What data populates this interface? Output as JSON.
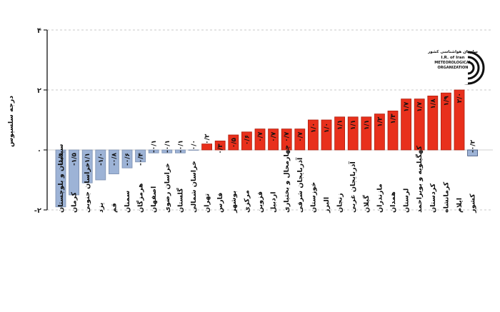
{
  "chart_data": {
    "type": "bar",
    "ylabel": "درجه سلسیوس",
    "ylim": [
      -2,
      4
    ],
    "yticks": [
      "-۲",
      "۰",
      "۲",
      "۴"
    ],
    "ytick_values": [
      -2,
      0,
      2,
      4
    ],
    "grid": true,
    "categories": [
      "سیستان و بلوچستان",
      "کرمان",
      "خراسان جنوبی",
      "یزد",
      "قم",
      "سمنان",
      "هرمزگان",
      "اصفهان",
      "خراسان رضوی",
      "گلستان",
      "خراسان شمالی",
      "تهران",
      "فارس",
      "بوشهر",
      "مرکزی",
      "قزوین",
      "اردبیل",
      "چهارمحال و بختیاری",
      "آذربایجان شرقی",
      "خوزستان",
      "البرز",
      "زنجان",
      "آذربایجان غربی",
      "گیلان",
      "مازندران",
      "همدان",
      "لرستان",
      "کهگیلویه و بویراحمد",
      "کردستان",
      "کرمانشاه",
      "ایلام",
      "کشور"
    ],
    "values": [
      -1.9,
      -1.5,
      -1.1,
      -1.0,
      -0.8,
      -0.6,
      -0.4,
      -0.1,
      -0.1,
      -0.1,
      0.0,
      0.2,
      0.3,
      0.5,
      0.6,
      0.7,
      0.7,
      0.7,
      0.7,
      1.0,
      1.0,
      1.1,
      1.1,
      1.1,
      1.2,
      1.3,
      1.7,
      1.7,
      1.8,
      1.9,
      2.0,
      -0.2
    ],
    "labels": [
      "-۱/۹",
      "-۱/۵",
      "-۱/۱",
      "-۱/۰",
      "-۰/۸",
      "-۰/۶",
      "-۰/۴",
      "-۰/۱",
      "-۰/۱",
      "-۰/۱",
      "۰/۰",
      "۰/۲",
      "۰/۳",
      "۰/۵",
      "۰/۶",
      "۰/۷",
      "۰/۷",
      "۰/۷",
      "۰/۷",
      "۱/۰",
      "۱/۰",
      "۱/۱",
      "۱/۱",
      "۱/۱",
      "۱/۲",
      "۱/۳",
      "۱/۷",
      "۱/۷",
      "۱/۸",
      "۱/۹",
      "۲/۰",
      "-۰/۲"
    ],
    "colors": {
      "negative": "#9db3d6",
      "positive": "#e8301c",
      "country": "#9db3d6",
      "country_edge": "#3a4f7a"
    }
  },
  "logo": {
    "line1": "سازمان هواشناسی کشور",
    "line2": "I.R. of Iran",
    "line3": "METEOROLOGICAL",
    "line4": "ORGANIZATION"
  }
}
